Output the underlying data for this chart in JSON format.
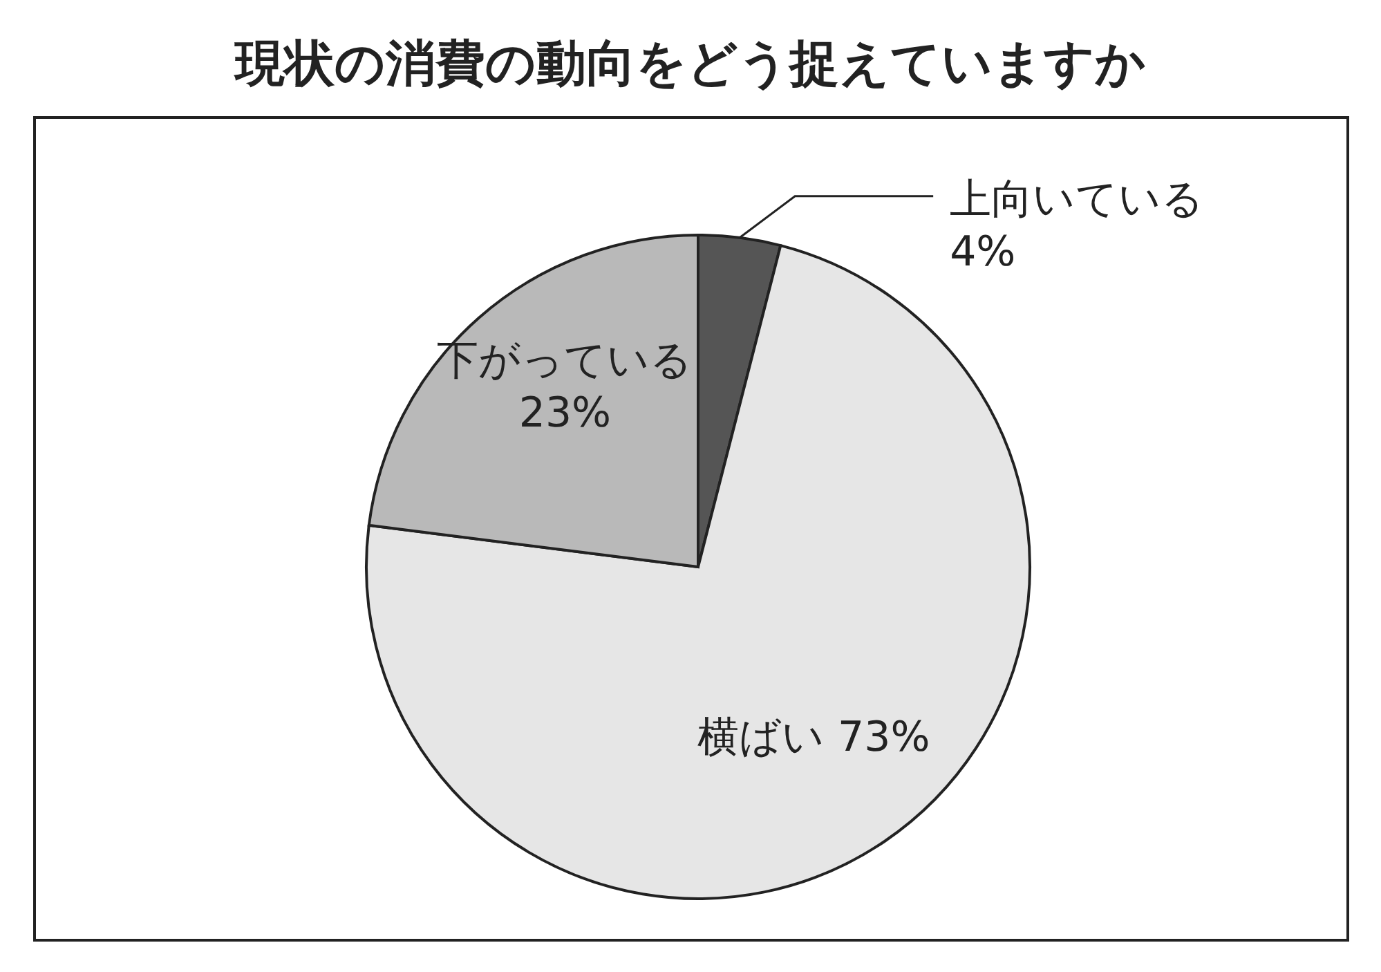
{
  "chart_data": {
    "type": "pie",
    "title": "現状の消費の動向をどう捉えていますか",
    "categories": [
      "上向いている",
      "横ばい",
      "下がっている"
    ],
    "values": [
      4,
      73,
      23
    ],
    "value_labels": [
      "4%",
      "73%",
      "23%"
    ],
    "colors": [
      "#555555",
      "#e6e6e6",
      "#b9b9b9"
    ]
  }
}
